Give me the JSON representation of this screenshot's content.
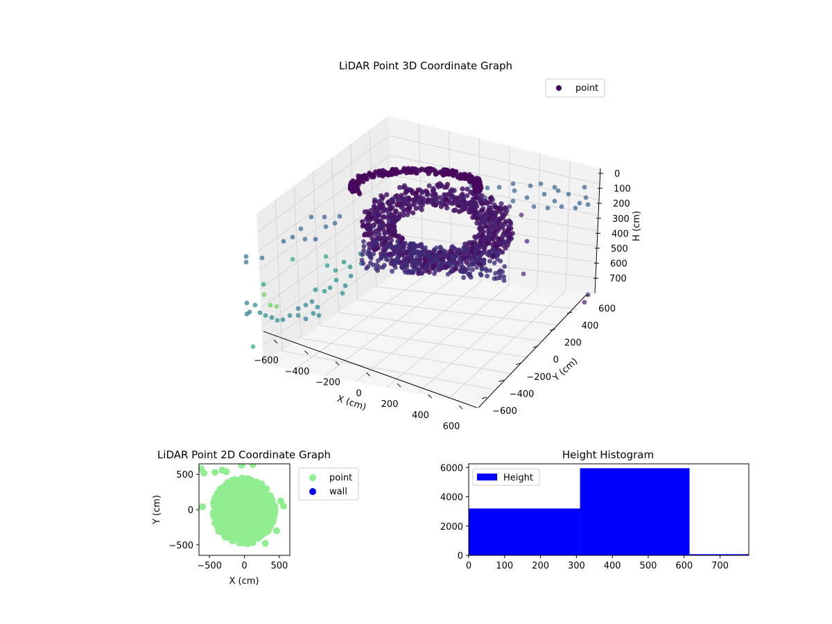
{
  "colors": {
    "dark_purple": "#440154",
    "light_green": "#90ee90",
    "wall_blue": "#0000ff",
    "hist_blue": "#0000ff"
  },
  "chart_data": [
    {
      "type": "scatter",
      "projection": "3d",
      "title": "LiDAR Point 3D Coordinate Graph",
      "xlabel": "X (cm)",
      "ylabel": "Y (cm)",
      "zlabel": "H (cm)",
      "xticks": [
        "−600",
        "−400",
        "−200",
        "0",
        "200",
        "400",
        "600"
      ],
      "yticks": [
        "−600",
        "−400",
        "−200",
        "0",
        "200",
        "400",
        "600"
      ],
      "zticks": [
        "0",
        "100",
        "200",
        "300",
        "400",
        "500",
        "600",
        "700"
      ],
      "xlim": [
        -700,
        700
      ],
      "ylim": [
        -700,
        700
      ],
      "zlim": [
        750,
        0
      ],
      "legend": {
        "position": "top-right",
        "entries": [
          {
            "label": "point",
            "color": "#440154"
          }
        ]
      },
      "colormap": "viridis",
      "grid": true
    },
    {
      "type": "scatter",
      "title": "LiDAR Point 2D Coordinate Graph",
      "xlabel": "X (cm)",
      "ylabel": "Y (cm)",
      "xticks": [
        "−500",
        "0",
        "500"
      ],
      "yticks": [
        "−500",
        "0",
        "500"
      ],
      "xlim": [
        -650,
        650
      ],
      "ylim": [
        -650,
        650
      ],
      "series": [
        {
          "name": "point",
          "color": "#90ee90"
        },
        {
          "name": "wall",
          "color": "#0000ff"
        }
      ],
      "legend": {
        "position": "outside-right"
      }
    },
    {
      "type": "bar",
      "title": "Height Histogram",
      "xticks": [
        "0",
        "100",
        "200",
        "300",
        "400",
        "500",
        "600",
        "700"
      ],
      "yticks": [
        "0",
        "2000",
        "4000",
        "6000"
      ],
      "xlim": [
        0,
        780
      ],
      "ylim": [
        0,
        6250
      ],
      "bins": [
        {
          "x0": 0,
          "x1": 310,
          "count": 3200
        },
        {
          "x0": 310,
          "x1": 615,
          "count": 5950
        },
        {
          "x0": 615,
          "x1": 780,
          "count": 80
        }
      ],
      "series": [
        {
          "name": "Height",
          "color": "#0000ff"
        }
      ],
      "legend": {
        "position": "top-left"
      }
    }
  ]
}
